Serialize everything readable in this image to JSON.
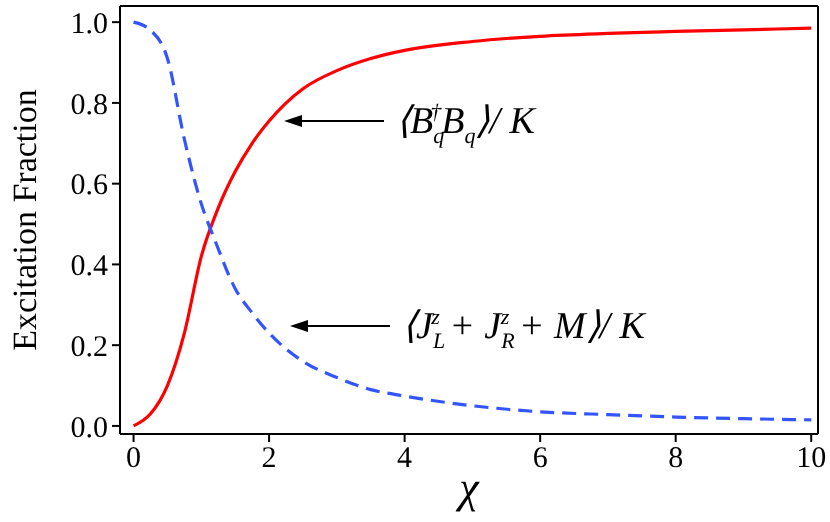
{
  "chart_data": {
    "type": "line",
    "xlabel": "χ",
    "ylabel": "Excitation Fraction",
    "xlim": [
      -0.2,
      10.1
    ],
    "ylim": [
      -0.02,
      1.04
    ],
    "xticks": [
      0,
      2,
      4,
      6,
      8,
      10
    ],
    "yticks": [
      {
        "value": 0,
        "label": "0.0"
      },
      {
        "value": 0.2,
        "label": "0.2"
      },
      {
        "value": 0.4,
        "label": "0.4"
      },
      {
        "value": 0.6,
        "label": "0.6"
      },
      {
        "value": 0.8,
        "label": "0.8"
      },
      {
        "value": 1,
        "label": "1.0"
      }
    ],
    "grid": false,
    "legend": false,
    "marker": "none",
    "series": [
      {
        "color": "#ff0000",
        "line_style": "solid",
        "x": [
          0,
          0.25,
          0.5,
          0.75,
          1,
          1.25,
          1.5,
          1.75,
          2,
          2.5,
          3,
          3.5,
          4,
          5,
          6,
          7,
          8,
          9,
          10
        ],
        "values": [
          0,
          0.03,
          0.1,
          0.23,
          0.42,
          0.54,
          0.63,
          0.7,
          0.755,
          0.835,
          0.88,
          0.91,
          0.93,
          0.952,
          0.965,
          0.972,
          0.977,
          0.981,
          0.985
        ]
      },
      {
        "color": "#3355ff",
        "line_style": "dashed",
        "x": [
          0,
          0.25,
          0.5,
          0.75,
          1,
          1.2,
          1.5,
          1.75,
          2,
          2.5,
          3,
          3.5,
          4,
          5,
          6,
          7,
          8,
          9,
          10
        ],
        "values": [
          1,
          0.98,
          0.91,
          0.71,
          0.55,
          0.46,
          0.34,
          0.28,
          0.23,
          0.16,
          0.12,
          0.09,
          0.074,
          0.05,
          0.035,
          0.028,
          0.022,
          0.018,
          0.015
        ]
      }
    ],
    "annotations": [
      {
        "text": "⟨B$_{q}$$^{†}$B$_{q}$⟩/ K",
        "x": 2.22,
        "y": 0.755
      },
      "⟨J$_{L}$$^{z}$ + J$_{R}$$^{z}$ + M⟩/ K"
    ]
  }
}
